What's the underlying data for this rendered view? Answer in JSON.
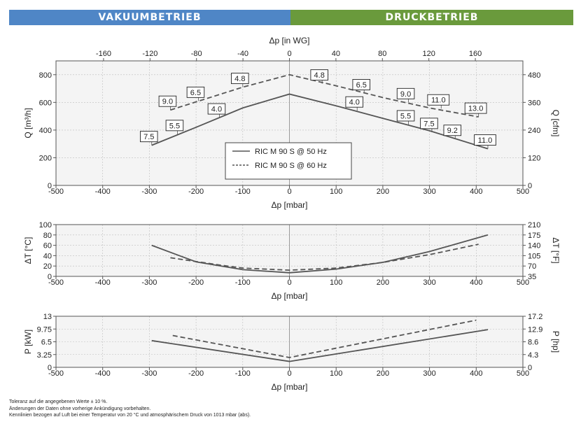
{
  "header": {
    "left_label": "VAKUUMBETRIEB",
    "right_label": "DRUCKBETRIEB",
    "left_color": "#4f86c6",
    "right_color": "#6a9a3c"
  },
  "legend": {
    "entries": [
      "RIC M 90 S @ 50 Hz",
      "RIC M 90 S @ 60 Hz"
    ]
  },
  "footer": {
    "lines": [
      "Toleranz auf die angegebenen Werte ± 10 %.",
      "Änderungen der Daten ohne vorherige Ankündigung vorbehalten.",
      "Kennlinien bezogen auf Luft bei einer Temperatur von 20 °C und atmosphärischem Druck von 1013 mbar (abs)."
    ]
  },
  "chart_data": [
    {
      "type": "line",
      "xlabel": "Δp [mbar]",
      "x2label": "Δp [in WG]",
      "ylabel": "Q [m³/h]",
      "y2label": "Q [cfm]",
      "xlim": [
        -500,
        500
      ],
      "ylim": [
        0,
        900
      ],
      "y2lim": [
        0,
        540
      ],
      "xticks": [
        -500,
        -400,
        -300,
        -200,
        -100,
        0,
        100,
        200,
        300,
        400,
        500
      ],
      "x2ticks": [
        -160,
        -120,
        -80,
        -40,
        0,
        40,
        80,
        120,
        160
      ],
      "yticks": [
        0,
        200,
        400,
        600,
        800
      ],
      "y2ticks": [
        0,
        120,
        240,
        360,
        480
      ],
      "grid": true,
      "legend_position": "center",
      "series": [
        {
          "name": "RIC M 90 S @ 50 Hz",
          "style": "solid",
          "x": [
            -295,
            -200,
            -100,
            0,
            100,
            200,
            300,
            425
          ],
          "y": [
            290,
            420,
            560,
            660,
            575,
            485,
            395,
            265
          ],
          "annotations": [
            {
              "x": -295,
              "y": 290,
              "label": "7.5"
            },
            {
              "x": -240,
              "y": 370,
              "label": "5.5"
            },
            {
              "x": -150,
              "y": 490,
              "label": "4.0"
            },
            {
              "x": 145,
              "y": 540,
              "label": "4.0"
            },
            {
              "x": 255,
              "y": 440,
              "label": "5.5"
            },
            {
              "x": 305,
              "y": 385,
              "label": "7.5"
            },
            {
              "x": 355,
              "y": 335,
              "label": "9.2"
            },
            {
              "x": 425,
              "y": 265,
              "label": "11.0"
            }
          ]
        },
        {
          "name": "RIC M 90 S @ 60 Hz",
          "style": "dashed",
          "x": [
            -255,
            -100,
            0,
            100,
            200,
            300,
            405
          ],
          "y": [
            545,
            710,
            800,
            720,
            635,
            560,
            495
          ],
          "annotations": [
            {
              "x": -255,
              "y": 545,
              "label": "9.0"
            },
            {
              "x": -195,
              "y": 610,
              "label": "6.5"
            },
            {
              "x": -100,
              "y": 710,
              "label": "4.8"
            },
            {
              "x": 70,
              "y": 735,
              "label": "4.8"
            },
            {
              "x": 160,
              "y": 665,
              "label": "6.5"
            },
            {
              "x": 255,
              "y": 600,
              "label": "9.0"
            },
            {
              "x": 325,
              "y": 555,
              "label": "11.0"
            },
            {
              "x": 405,
              "y": 495,
              "label": "13.0"
            }
          ]
        }
      ]
    },
    {
      "type": "line",
      "xlabel": "Δp [mbar]",
      "ylabel": "ΔT [°C]",
      "y2label": "ΔT [°F]",
      "xlim": [
        -500,
        500
      ],
      "ylim": [
        0,
        100
      ],
      "y2lim": [
        35,
        210
      ],
      "xticks": [
        -500,
        -400,
        -300,
        -200,
        -100,
        0,
        100,
        200,
        300,
        400,
        500
      ],
      "yticks": [
        0,
        20,
        40,
        60,
        80,
        100
      ],
      "y2ticks": [
        35,
        70,
        105,
        140,
        175,
        210
      ],
      "grid": true,
      "series": [
        {
          "name": "RIC M 90 S @ 50 Hz",
          "style": "solid",
          "x": [
            -295,
            -200,
            -100,
            0,
            100,
            200,
            300,
            425
          ],
          "y": [
            60,
            28,
            13,
            7,
            14,
            27,
            48,
            80
          ]
        },
        {
          "name": "RIC M 90 S @ 60 Hz",
          "style": "dashed",
          "x": [
            -255,
            -150,
            -100,
            0,
            100,
            200,
            300,
            405
          ],
          "y": [
            36,
            22,
            16,
            12,
            16,
            27,
            42,
            62
          ]
        }
      ]
    },
    {
      "type": "line",
      "xlabel": "Δp [mbar]",
      "ylabel": "P [kW]",
      "y2label": "P [hp]",
      "xlim": [
        -500,
        500
      ],
      "ylim": [
        0,
        13
      ],
      "y2lim": [
        0,
        17.2
      ],
      "xticks": [
        -500,
        -400,
        -300,
        -200,
        -100,
        0,
        100,
        200,
        300,
        400,
        500
      ],
      "yticks": [
        0,
        3.25,
        6.5,
        9.75,
        13
      ],
      "ytick_labels": [
        "0",
        "3.25",
        "6.5",
        "9.75",
        "13"
      ],
      "y2ticks": [
        0,
        4.3,
        8.6,
        12.9,
        17.2
      ],
      "y2tick_labels": [
        "0",
        "4.3",
        "8.6",
        "12.9",
        "17.2"
      ],
      "grid": true,
      "series": [
        {
          "name": "RIC M 90 S @ 50 Hz",
          "style": "solid",
          "x": [
            -295,
            0,
            425
          ],
          "y": [
            6.8,
            1.5,
            9.6
          ]
        },
        {
          "name": "RIC M 90 S @ 60 Hz",
          "style": "dashed",
          "x": [
            -250,
            0,
            400
          ],
          "y": [
            8.1,
            2.5,
            12.0
          ]
        }
      ]
    }
  ]
}
